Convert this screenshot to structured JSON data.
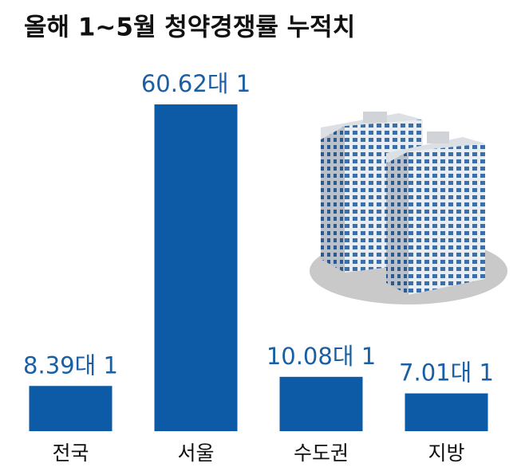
{
  "chart_data": {
    "type": "bar",
    "title": "올해 1~5월 청약경쟁률 누적치",
    "categories": [
      "전국",
      "서울",
      "수도권",
      "지방"
    ],
    "values": [
      8.39,
      60.62,
      10.08,
      7.01
    ],
    "value_labels": [
      "8.39대 1",
      "60.62대 1",
      "10.08대 1",
      "7.01대 1"
    ],
    "color": "#0d5aa7"
  }
}
